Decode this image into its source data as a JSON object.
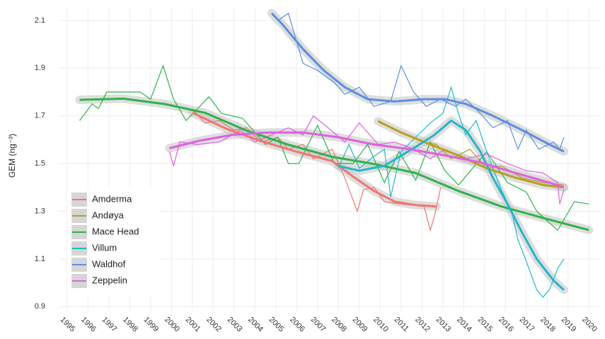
{
  "chart_data": {
    "type": "line",
    "y_label": "GEM (ng⁻³)",
    "xlim": [
      1994.6,
      2020.6
    ],
    "ylim": [
      0.88,
      2.15
    ],
    "xticks": [
      1995,
      1996,
      1997,
      1998,
      1999,
      2000,
      2001,
      2002,
      2003,
      2004,
      2005,
      2006,
      2007,
      2008,
      2009,
      2010,
      2011,
      2012,
      2013,
      2014,
      2015,
      2016,
      2017,
      2018,
      2019,
      2020
    ],
    "yticks": [
      0.9,
      1.1,
      1.3,
      1.5,
      1.7,
      1.9,
      2.1
    ],
    "grid": true,
    "legend": "bottom-left",
    "series": [
      {
        "name": "Amderma",
        "color": "#f07670",
        "x": [
          2001.0,
          2001.6,
          2002.3,
          2003.0,
          2003.6,
          2004.3,
          2005.1,
          2005.6,
          2006.3,
          2006.8,
          2007.7,
          2008.3,
          2008.9,
          2009.2,
          2009.7,
          2010.2,
          2011.0,
          2012.1,
          2012.4,
          2012.6,
          2012.9
        ],
        "values": [
          1.73,
          1.67,
          1.68,
          1.64,
          1.65,
          1.59,
          1.61,
          1.56,
          1.58,
          1.52,
          1.56,
          1.44,
          1.3,
          1.39,
          1.4,
          1.34,
          1.33,
          1.32,
          1.22,
          1.28,
          1.4
        ],
        "trend_x": [
          2001.0,
          2002.6,
          2004.3,
          2006.0,
          2007.7,
          2008.7,
          2009.7,
          2010.7,
          2011.7,
          2012.7
        ],
        "trend": [
          1.713,
          1.647,
          1.594,
          1.549,
          1.51,
          1.445,
          1.385,
          1.34,
          1.326,
          1.32
        ]
      },
      {
        "name": "Andøya",
        "color": "#b8a020",
        "x": [
          2009.9,
          2010.7,
          2012.1,
          2012.7,
          2013.4,
          2014.3,
          2015.1,
          2015.8,
          2016.8,
          2017.8,
          2018.8
        ],
        "values": [
          1.68,
          1.64,
          1.59,
          1.58,
          1.52,
          1.56,
          1.48,
          1.49,
          1.44,
          1.42,
          1.41
        ],
        "trend_x": [
          2009.9,
          2011.0,
          2012.4,
          2013.75,
          2015.1,
          2016.5,
          2017.8,
          2018.8
        ],
        "trend": [
          1.677,
          1.63,
          1.58,
          1.534,
          1.48,
          1.44,
          1.41,
          1.4
        ]
      },
      {
        "name": "Mace Head",
        "color": "#2db34a",
        "x": [
          1995.6,
          1996.2,
          1996.5,
          1996.9,
          1998.5,
          1999.0,
          1999.6,
          2000.1,
          2000.7,
          2001.8,
          2002.4,
          2003.4,
          2004.5,
          2005.1,
          2005.6,
          2006.1,
          2007.0,
          2007.8,
          2008.7,
          2009.4,
          2010.2,
          2010.9,
          2011.7,
          2012.4,
          2013.1,
          2013.75,
          2015.1,
          2016.1,
          2017.0,
          2017.5,
          2018.5,
          2019.3,
          2020.0
        ],
        "values": [
          1.68,
          1.75,
          1.73,
          1.8,
          1.8,
          1.77,
          1.91,
          1.77,
          1.68,
          1.78,
          1.71,
          1.69,
          1.58,
          1.61,
          1.5,
          1.5,
          1.66,
          1.5,
          1.5,
          1.58,
          1.42,
          1.55,
          1.43,
          1.59,
          1.47,
          1.41,
          1.55,
          1.42,
          1.38,
          1.3,
          1.22,
          1.34,
          1.33
        ],
        "trend_x": [
          1995.6,
          1997.7,
          1999.7,
          2001.6,
          2003.6,
          2005.6,
          2007.7,
          2009.7,
          2011.7,
          2013.75,
          2015.8,
          2017.8,
          2020.0
        ],
        "trend": [
          1.767,
          1.772,
          1.749,
          1.713,
          1.638,
          1.579,
          1.528,
          1.498,
          1.46,
          1.385,
          1.32,
          1.272,
          1.221
        ]
      },
      {
        "name": "Villum",
        "color": "#20b8c8",
        "x": [
          2008.0,
          2008.5,
          2009.0,
          2009.7,
          2010.2,
          2010.5,
          2011.0,
          2011.7,
          2012.4,
          2013.0,
          2013.4,
          2013.75,
          2014.1,
          2014.6,
          2015.1,
          2015.8,
          2016.3,
          2016.6,
          2017.0,
          2017.5,
          2017.8,
          2018.1,
          2018.5,
          2018.8
        ],
        "values": [
          1.48,
          1.58,
          1.48,
          1.53,
          1.56,
          1.36,
          1.55,
          1.61,
          1.67,
          1.71,
          1.82,
          1.71,
          1.62,
          1.68,
          1.55,
          1.39,
          1.3,
          1.18,
          1.09,
          0.97,
          0.94,
          0.97,
          1.06,
          1.1
        ],
        "trend_x": [
          2008.0,
          2009.0,
          2010.2,
          2011.7,
          2012.6,
          2013.4,
          2014.1,
          2014.8,
          2015.4,
          2016.1,
          2016.8,
          2017.5,
          2018.3,
          2018.8
        ],
        "trend": [
          1.49,
          1.47,
          1.49,
          1.57,
          1.62,
          1.68,
          1.64,
          1.55,
          1.44,
          1.33,
          1.21,
          1.1,
          1.01,
          0.97
        ]
      },
      {
        "name": "Waldhof",
        "color": "#5b8fe0",
        "x": [
          2004.8,
          2005.1,
          2005.6,
          2006.3,
          2007.0,
          2007.8,
          2008.3,
          2009.0,
          2009.7,
          2010.5,
          2011.0,
          2011.6,
          2012.2,
          2012.9,
          2013.6,
          2014.1,
          2014.8,
          2015.4,
          2016.1,
          2016.6,
          2017.0,
          2017.6,
          2018.3,
          2018.6,
          2018.8
        ],
        "values": [
          2.13,
          2.1,
          2.13,
          1.92,
          1.89,
          1.84,
          1.79,
          1.82,
          1.74,
          1.76,
          1.91,
          1.8,
          1.74,
          1.77,
          1.74,
          1.77,
          1.71,
          1.65,
          1.68,
          1.56,
          1.64,
          1.56,
          1.59,
          1.56,
          1.61
        ],
        "trend_x": [
          2004.8,
          2005.3,
          2006.3,
          2007.3,
          2008.3,
          2009.4,
          2010.7,
          2012.1,
          2013.1,
          2014.1,
          2015.4,
          2016.8,
          2018.1,
          2018.8
        ],
        "trend": [
          2.13,
          2.085,
          1.98,
          1.89,
          1.82,
          1.77,
          1.76,
          1.77,
          1.77,
          1.75,
          1.7,
          1.64,
          1.58,
          1.55
        ]
      },
      {
        "name": "Zeppelin",
        "color": "#e060e0",
        "x": [
          1999.9,
          2000.1,
          2000.4,
          2001.25,
          2002.3,
          2003.3,
          2004.0,
          2004.8,
          2005.6,
          2006.3,
          2006.8,
          2007.5,
          2008.3,
          2009.0,
          2009.9,
          2010.7,
          2011.6,
          2012.4,
          2013.1,
          2014.1,
          2015.1,
          2016.1,
          2017.0,
          2017.8,
          2018.5,
          2018.6,
          2018.8
        ],
        "values": [
          1.55,
          1.49,
          1.59,
          1.58,
          1.59,
          1.64,
          1.59,
          1.62,
          1.65,
          1.62,
          1.7,
          1.65,
          1.59,
          1.67,
          1.58,
          1.59,
          1.56,
          1.52,
          1.56,
          1.52,
          1.54,
          1.5,
          1.47,
          1.46,
          1.42,
          1.33,
          1.39
        ],
        "trend_x": [
          1999.9,
          2001.25,
          2002.9,
          2004.6,
          2006.3,
          2008.0,
          2009.7,
          2011.4,
          2013.1,
          2014.8,
          2016.5,
          2018.1,
          2018.8
        ],
        "trend": [
          1.564,
          1.594,
          1.62,
          1.63,
          1.63,
          1.61,
          1.58,
          1.56,
          1.534,
          1.505,
          1.46,
          1.42,
          1.4
        ]
      }
    ]
  }
}
